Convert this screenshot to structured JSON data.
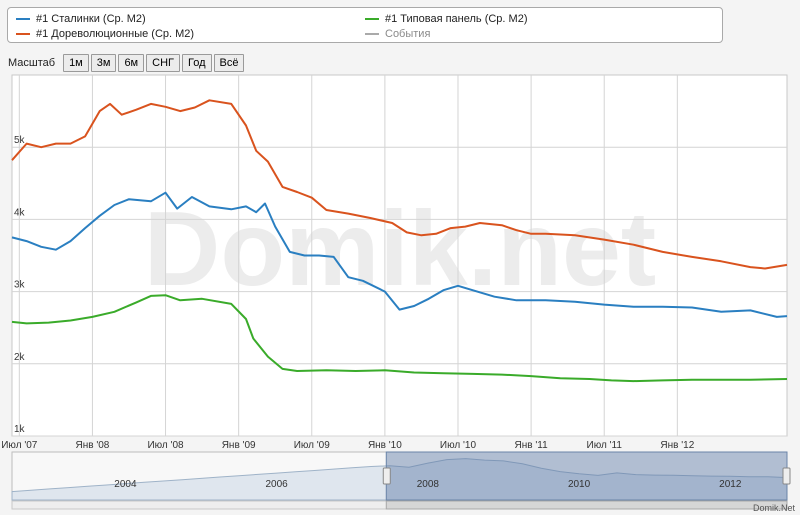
{
  "legend": {
    "items": [
      {
        "label": "#1 Сталинки (Ср. M2)",
        "color": "#2a7fc1"
      },
      {
        "label": "#1 Дореволюционные (Ср. M2)",
        "color": "#d9531e"
      },
      {
        "label": "#1 Типовая панель (Ср. M2)",
        "color": "#3aab2a"
      },
      {
        "label": "События",
        "color": "#aaaaaa"
      }
    ]
  },
  "range_selector": {
    "label": "Масштаб",
    "buttons": [
      "1м",
      "3м",
      "6м",
      "СНГ",
      "Год",
      "Всё"
    ]
  },
  "watermark": "Domik.net",
  "footer": "Domik.Net",
  "chart_data": {
    "type": "line",
    "xlabel": "",
    "ylabel": "",
    "ylim": [
      1000,
      6000
    ],
    "y_ticks": [
      {
        "v": 1000,
        "label": "1k"
      },
      {
        "v": 2000,
        "label": "2k"
      },
      {
        "v": 3000,
        "label": "3k"
      },
      {
        "v": 4000,
        "label": "4k"
      },
      {
        "v": 5000,
        "label": "5k"
      }
    ],
    "x_range": [
      2007.45,
      2012.75
    ],
    "x_ticks": [
      {
        "t": 2007.5,
        "label": "Июл '07"
      },
      {
        "t": 2008.0,
        "label": "Янв '08"
      },
      {
        "t": 2008.5,
        "label": "Июл '08"
      },
      {
        "t": 2009.0,
        "label": "Янв '09"
      },
      {
        "t": 2009.5,
        "label": "Июл '09"
      },
      {
        "t": 2010.0,
        "label": "Янв '10"
      },
      {
        "t": 2010.5,
        "label": "Июл '10"
      },
      {
        "t": 2011.0,
        "label": "Янв '11"
      },
      {
        "t": 2011.5,
        "label": "Июл '11"
      },
      {
        "t": 2012.0,
        "label": "Янв '12"
      }
    ],
    "grid": true,
    "series": [
      {
        "name": "#1 Сталинки (Ср. M2)",
        "color": "#2a7fc1",
        "points": [
          [
            2007.45,
            3750
          ],
          [
            2007.55,
            3700
          ],
          [
            2007.65,
            3620
          ],
          [
            2007.75,
            3580
          ],
          [
            2007.85,
            3700
          ],
          [
            2007.95,
            3880
          ],
          [
            2008.05,
            4050
          ],
          [
            2008.15,
            4200
          ],
          [
            2008.25,
            4280
          ],
          [
            2008.4,
            4250
          ],
          [
            2008.5,
            4370
          ],
          [
            2008.58,
            4150
          ],
          [
            2008.68,
            4310
          ],
          [
            2008.8,
            4180
          ],
          [
            2008.95,
            4140
          ],
          [
            2009.05,
            4180
          ],
          [
            2009.12,
            4100
          ],
          [
            2009.18,
            4220
          ],
          [
            2009.25,
            3900
          ],
          [
            2009.35,
            3550
          ],
          [
            2009.45,
            3500
          ],
          [
            2009.55,
            3500
          ],
          [
            2009.65,
            3480
          ],
          [
            2009.75,
            3200
          ],
          [
            2009.85,
            3150
          ],
          [
            2010.0,
            3000
          ],
          [
            2010.1,
            2750
          ],
          [
            2010.2,
            2800
          ],
          [
            2010.3,
            2900
          ],
          [
            2010.4,
            3020
          ],
          [
            2010.5,
            3080
          ],
          [
            2010.6,
            3020
          ],
          [
            2010.75,
            2930
          ],
          [
            2010.9,
            2880
          ],
          [
            2011.1,
            2880
          ],
          [
            2011.3,
            2860
          ],
          [
            2011.5,
            2820
          ],
          [
            2011.7,
            2790
          ],
          [
            2011.9,
            2790
          ],
          [
            2012.1,
            2780
          ],
          [
            2012.3,
            2720
          ],
          [
            2012.5,
            2740
          ],
          [
            2012.68,
            2650
          ],
          [
            2012.75,
            2660
          ]
        ]
      },
      {
        "name": "#1 Дореволюционные (Ср. M2)",
        "color": "#d9531e",
        "points": [
          [
            2007.45,
            4820
          ],
          [
            2007.55,
            5050
          ],
          [
            2007.65,
            5000
          ],
          [
            2007.75,
            5050
          ],
          [
            2007.85,
            5050
          ],
          [
            2007.95,
            5150
          ],
          [
            2008.05,
            5500
          ],
          [
            2008.12,
            5600
          ],
          [
            2008.2,
            5450
          ],
          [
            2008.3,
            5520
          ],
          [
            2008.4,
            5600
          ],
          [
            2008.5,
            5560
          ],
          [
            2008.6,
            5500
          ],
          [
            2008.7,
            5550
          ],
          [
            2008.8,
            5650
          ],
          [
            2008.95,
            5600
          ],
          [
            2009.05,
            5300
          ],
          [
            2009.12,
            4950
          ],
          [
            2009.2,
            4800
          ],
          [
            2009.3,
            4450
          ],
          [
            2009.4,
            4380
          ],
          [
            2009.5,
            4300
          ],
          [
            2009.6,
            4130
          ],
          [
            2009.75,
            4080
          ],
          [
            2009.9,
            4020
          ],
          [
            2010.05,
            3950
          ],
          [
            2010.15,
            3820
          ],
          [
            2010.25,
            3780
          ],
          [
            2010.35,
            3800
          ],
          [
            2010.45,
            3880
          ],
          [
            2010.55,
            3900
          ],
          [
            2010.65,
            3950
          ],
          [
            2010.8,
            3920
          ],
          [
            2010.9,
            3850
          ],
          [
            2011.0,
            3800
          ],
          [
            2011.1,
            3800
          ],
          [
            2011.3,
            3780
          ],
          [
            2011.5,
            3720
          ],
          [
            2011.7,
            3650
          ],
          [
            2011.9,
            3550
          ],
          [
            2012.1,
            3480
          ],
          [
            2012.3,
            3420
          ],
          [
            2012.5,
            3340
          ],
          [
            2012.6,
            3320
          ],
          [
            2012.75,
            3370
          ]
        ]
      },
      {
        "name": "#1 Типовая панель (Ср. M2)",
        "color": "#3aab2a",
        "points": [
          [
            2007.45,
            2580
          ],
          [
            2007.55,
            2560
          ],
          [
            2007.7,
            2570
          ],
          [
            2007.85,
            2600
          ],
          [
            2008.0,
            2650
          ],
          [
            2008.15,
            2720
          ],
          [
            2008.3,
            2850
          ],
          [
            2008.4,
            2940
          ],
          [
            2008.5,
            2950
          ],
          [
            2008.6,
            2880
          ],
          [
            2008.75,
            2900
          ],
          [
            2008.95,
            2830
          ],
          [
            2009.05,
            2620
          ],
          [
            2009.1,
            2350
          ],
          [
            2009.2,
            2100
          ],
          [
            2009.3,
            1930
          ],
          [
            2009.4,
            1900
          ],
          [
            2009.6,
            1910
          ],
          [
            2009.8,
            1900
          ],
          [
            2010.0,
            1910
          ],
          [
            2010.2,
            1880
          ],
          [
            2010.4,
            1870
          ],
          [
            2010.6,
            1860
          ],
          [
            2010.8,
            1850
          ],
          [
            2011.0,
            1830
          ],
          [
            2011.2,
            1800
          ],
          [
            2011.4,
            1790
          ],
          [
            2011.55,
            1770
          ],
          [
            2011.7,
            1760
          ],
          [
            2011.9,
            1770
          ],
          [
            2012.1,
            1780
          ],
          [
            2012.3,
            1780
          ],
          [
            2012.5,
            1780
          ],
          [
            2012.75,
            1790
          ]
        ]
      }
    ],
    "navigator": {
      "year_labels": [
        "2004",
        "2006",
        "2008",
        "2010",
        "2012"
      ],
      "range": [
        2002.5,
        2012.75
      ],
      "selected": [
        2007.45,
        2012.75
      ]
    }
  }
}
